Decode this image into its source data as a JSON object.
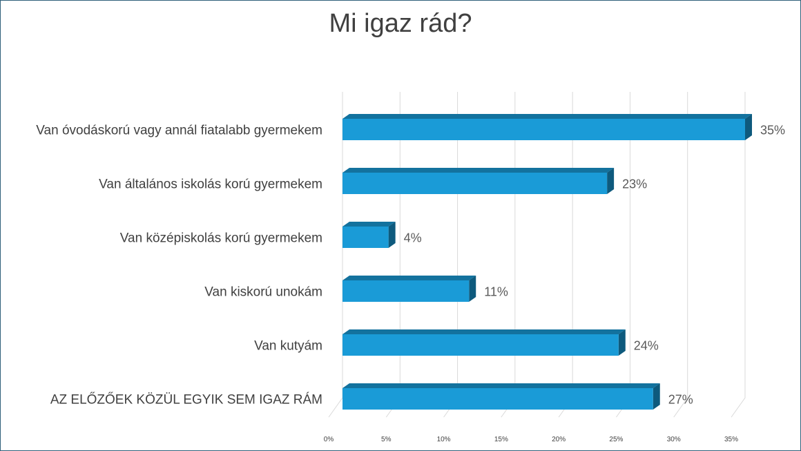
{
  "chart_data": {
    "type": "bar",
    "orientation": "horizontal",
    "title": "Mi igaz rád?",
    "categories": [
      "Van óvodáskorú vagy annál fiatalabb gyermekem",
      "Van általános iskolás korú gyermekem",
      "Van középiskolás korú gyermekem",
      "Van kiskorú unokám",
      "Van kutyám",
      "AZ ELŐZŐEK KÖZÜL EGYIK SEM IGAZ RÁM"
    ],
    "values": [
      35,
      23,
      4,
      11,
      24,
      27
    ],
    "value_labels": [
      "35%",
      "23%",
      "4%",
      "11%",
      "24%",
      "27%"
    ],
    "xticks": [
      "0%",
      "5%",
      "10%",
      "15%",
      "20%",
      "25%",
      "30%",
      "35%"
    ],
    "xlim": [
      0,
      35
    ],
    "xlabel": "",
    "ylabel": "",
    "grid": true,
    "legend": "none",
    "colors": {
      "bar_front": "#1a9bd7",
      "bar_top": "#13729e",
      "bar_side": "#0e5a7d",
      "grid": "#d9d9d9",
      "text": "#404040"
    }
  }
}
